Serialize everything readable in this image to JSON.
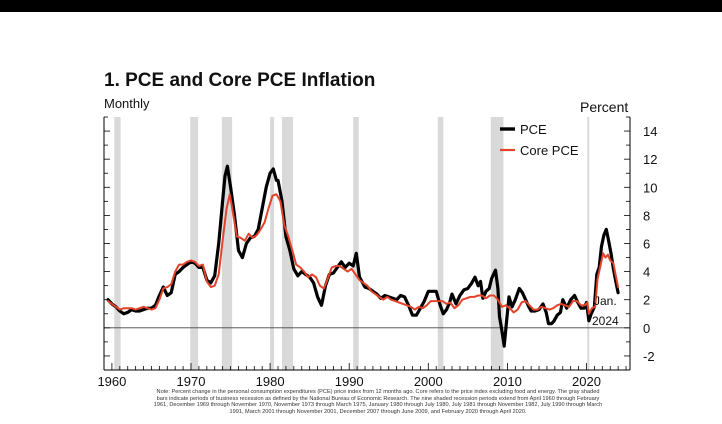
{
  "chart_data": {
    "type": "line",
    "title": "1. PCE and Core PCE Inflation",
    "subtitle": "Monthly",
    "ylabel": "Percent",
    "xlim": [
      1959,
      2025.5
    ],
    "ylim": [
      -3,
      15
    ],
    "x_ticks": [
      1960,
      1970,
      1980,
      1990,
      2000,
      2010,
      2020
    ],
    "x_tick_labels": [
      "1960",
      "1970",
      "1980",
      "1990",
      "2000",
      "2010",
      "2020"
    ],
    "y_ticks": [
      -2,
      0,
      2,
      4,
      6,
      8,
      10,
      12,
      14
    ],
    "y_tick_labels": [
      "-2",
      "0",
      "2",
      "4",
      "6",
      "8",
      "10",
      "12",
      "14"
    ],
    "legend_position": "top-right",
    "annotation": {
      "line1": "Jan.",
      "line2": "2024"
    },
    "recessions": [
      [
        1960.3,
        1961.1
      ],
      [
        1969.9,
        1970.9
      ],
      [
        1973.9,
        1975.2
      ],
      [
        1980.0,
        1980.5
      ],
      [
        1981.5,
        1982.9
      ],
      [
        1990.5,
        1991.2
      ],
      [
        2001.2,
        2001.9
      ],
      [
        2007.9,
        2009.5
      ],
      [
        2020.1,
        2020.3
      ]
    ],
    "series": [
      {
        "name": "PCE",
        "color": "#000000",
        "points": [
          [
            1959.5,
            2.0
          ],
          [
            1960,
            1.7
          ],
          [
            1960.5,
            1.5
          ],
          [
            1961,
            1.2
          ],
          [
            1961.5,
            1.0
          ],
          [
            1962,
            1.1
          ],
          [
            1962.5,
            1.3
          ],
          [
            1963,
            1.2
          ],
          [
            1963.5,
            1.2
          ],
          [
            1964,
            1.3
          ],
          [
            1964.5,
            1.4
          ],
          [
            1965,
            1.4
          ],
          [
            1965.5,
            1.6
          ],
          [
            1966,
            2.3
          ],
          [
            1966.5,
            2.9
          ],
          [
            1967,
            2.3
          ],
          [
            1967.5,
            2.5
          ],
          [
            1968,
            3.8
          ],
          [
            1968.5,
            4.0
          ],
          [
            1969,
            4.3
          ],
          [
            1969.5,
            4.5
          ],
          [
            1970,
            4.7
          ],
          [
            1970.5,
            4.6
          ],
          [
            1971,
            4.3
          ],
          [
            1971.5,
            4.3
          ],
          [
            1972,
            3.4
          ],
          [
            1972.5,
            3.2
          ],
          [
            1973,
            3.7
          ],
          [
            1973.5,
            6.0
          ],
          [
            1974,
            9.0
          ],
          [
            1974.3,
            10.8
          ],
          [
            1974.6,
            11.5
          ],
          [
            1975,
            10.0
          ],
          [
            1975.5,
            8.0
          ],
          [
            1976,
            5.5
          ],
          [
            1976.5,
            5.0
          ],
          [
            1977,
            6.0
          ],
          [
            1977.5,
            6.4
          ],
          [
            1978,
            6.5
          ],
          [
            1978.5,
            7.0
          ],
          [
            1979,
            8.5
          ],
          [
            1979.5,
            10.0
          ],
          [
            1980,
            11.0
          ],
          [
            1980.4,
            11.3
          ],
          [
            1980.8,
            10.5
          ],
          [
            1981,
            10.5
          ],
          [
            1981.5,
            9.0
          ],
          [
            1982,
            6.5
          ],
          [
            1982.5,
            5.5
          ],
          [
            1983,
            4.2
          ],
          [
            1983.5,
            3.7
          ],
          [
            1984,
            4.0
          ],
          [
            1984.5,
            3.8
          ],
          [
            1985,
            3.6
          ],
          [
            1985.5,
            3.2
          ],
          [
            1986,
            2.2
          ],
          [
            1986.5,
            1.6
          ],
          [
            1987,
            3.0
          ],
          [
            1987.5,
            3.8
          ],
          [
            1988,
            3.9
          ],
          [
            1988.5,
            4.3
          ],
          [
            1989,
            4.7
          ],
          [
            1989.5,
            4.3
          ],
          [
            1990,
            4.6
          ],
          [
            1990.5,
            4.4
          ],
          [
            1990.9,
            5.3
          ],
          [
            1991.3,
            3.6
          ],
          [
            1992,
            2.9
          ],
          [
            1992.5,
            2.8
          ],
          [
            1993,
            2.6
          ],
          [
            1993.5,
            2.4
          ],
          [
            1994,
            2.1
          ],
          [
            1994.5,
            2.3
          ],
          [
            1995,
            2.2
          ],
          [
            1995.5,
            2.1
          ],
          [
            1996,
            2.0
          ],
          [
            1996.5,
            2.3
          ],
          [
            1997,
            2.2
          ],
          [
            1997.5,
            1.6
          ],
          [
            1998,
            0.9
          ],
          [
            1998.5,
            0.9
          ],
          [
            1999,
            1.4
          ],
          [
            1999.5,
            1.9
          ],
          [
            2000,
            2.6
          ],
          [
            2000.5,
            2.6
          ],
          [
            2001,
            2.6
          ],
          [
            2001.5,
            1.6
          ],
          [
            2001.9,
            1.0
          ],
          [
            2002.3,
            1.3
          ],
          [
            2002.7,
            1.8
          ],
          [
            2003,
            2.4
          ],
          [
            2003.5,
            1.7
          ],
          [
            2004,
            2.3
          ],
          [
            2004.5,
            2.7
          ],
          [
            2005,
            2.8
          ],
          [
            2005.5,
            3.2
          ],
          [
            2005.9,
            3.6
          ],
          [
            2006.3,
            3.0
          ],
          [
            2006.6,
            3.3
          ],
          [
            2006.9,
            2.1
          ],
          [
            2007.3,
            2.6
          ],
          [
            2007.7,
            2.8
          ],
          [
            2008,
            3.5
          ],
          [
            2008.5,
            4.1
          ],
          [
            2008.8,
            2.8
          ],
          [
            2009,
            0.8
          ],
          [
            2009.3,
            -0.2
          ],
          [
            2009.6,
            -1.3
          ],
          [
            2009.9,
            0.5
          ],
          [
            2010.2,
            2.2
          ],
          [
            2010.6,
            1.5
          ],
          [
            2011,
            2.0
          ],
          [
            2011.5,
            2.8
          ],
          [
            2011.9,
            2.5
          ],
          [
            2012.3,
            2.0
          ],
          [
            2012.7,
            1.5
          ],
          [
            2013,
            1.2
          ],
          [
            2013.5,
            1.2
          ],
          [
            2014,
            1.3
          ],
          [
            2014.5,
            1.7
          ],
          [
            2014.9,
            1.1
          ],
          [
            2015.2,
            0.3
          ],
          [
            2015.6,
            0.3
          ],
          [
            2015.9,
            0.5
          ],
          [
            2016.3,
            0.9
          ],
          [
            2016.7,
            1.1
          ],
          [
            2017,
            2.0
          ],
          [
            2017.5,
            1.4
          ],
          [
            2018,
            2.0
          ],
          [
            2018.5,
            2.3
          ],
          [
            2018.9,
            1.8
          ],
          [
            2019.3,
            1.4
          ],
          [
            2019.7,
            1.4
          ],
          [
            2020,
            1.8
          ],
          [
            2020.3,
            0.5
          ],
          [
            2020.6,
            1.0
          ],
          [
            2021,
            1.5
          ],
          [
            2021.3,
            3.8
          ],
          [
            2021.6,
            4.3
          ],
          [
            2021.9,
            5.8
          ],
          [
            2022.2,
            6.6
          ],
          [
            2022.5,
            7.0
          ],
          [
            2022.8,
            6.2
          ],
          [
            2023.1,
            5.3
          ],
          [
            2023.4,
            4.2
          ],
          [
            2023.7,
            3.3
          ],
          [
            2024.0,
            2.5
          ]
        ]
      },
      {
        "name": "Core PCE",
        "color": "#e2432a",
        "points": [
          [
            1959.5,
            1.9
          ],
          [
            1960,
            1.7
          ],
          [
            1960.5,
            1.5
          ],
          [
            1961,
            1.3
          ],
          [
            1961.5,
            1.4
          ],
          [
            1962,
            1.4
          ],
          [
            1962.5,
            1.4
          ],
          [
            1963,
            1.3
          ],
          [
            1963.5,
            1.4
          ],
          [
            1964,
            1.5
          ],
          [
            1964.5,
            1.4
          ],
          [
            1965,
            1.3
          ],
          [
            1965.5,
            1.4
          ],
          [
            1966,
            2.0
          ],
          [
            1966.5,
            2.8
          ],
          [
            1967,
            2.9
          ],
          [
            1967.5,
            3.1
          ],
          [
            1968,
            4.0
          ],
          [
            1968.5,
            4.5
          ],
          [
            1969,
            4.5
          ],
          [
            1969.5,
            4.7
          ],
          [
            1970,
            4.8
          ],
          [
            1970.5,
            4.7
          ],
          [
            1971,
            4.4
          ],
          [
            1971.5,
            4.5
          ],
          [
            1972,
            3.3
          ],
          [
            1972.5,
            2.9
          ],
          [
            1973,
            3.0
          ],
          [
            1973.5,
            3.8
          ],
          [
            1974,
            6.2
          ],
          [
            1974.5,
            8.5
          ],
          [
            1974.9,
            9.5
          ],
          [
            1975.3,
            8.2
          ],
          [
            1975.8,
            6.5
          ],
          [
            1976.3,
            6.4
          ],
          [
            1976.8,
            6.2
          ],
          [
            1977.3,
            6.7
          ],
          [
            1977.8,
            6.4
          ],
          [
            1978.3,
            6.6
          ],
          [
            1978.8,
            7.0
          ],
          [
            1979.3,
            7.5
          ],
          [
            1979.8,
            8.5
          ],
          [
            1980.3,
            9.4
          ],
          [
            1980.8,
            9.5
          ],
          [
            1981.3,
            9.0
          ],
          [
            1981.8,
            7.3
          ],
          [
            1982.3,
            6.5
          ],
          [
            1982.8,
            5.5
          ],
          [
            1983.3,
            4.5
          ],
          [
            1983.8,
            4.3
          ],
          [
            1984.3,
            4.0
          ],
          [
            1984.8,
            3.6
          ],
          [
            1985.3,
            3.8
          ],
          [
            1985.8,
            3.6
          ],
          [
            1986.3,
            3.0
          ],
          [
            1986.8,
            2.8
          ],
          [
            1987.3,
            3.5
          ],
          [
            1987.8,
            4.3
          ],
          [
            1988.3,
            4.4
          ],
          [
            1988.8,
            4.4
          ],
          [
            1989.3,
            4.2
          ],
          [
            1989.8,
            4.0
          ],
          [
            1990.3,
            4.2
          ],
          [
            1990.8,
            3.8
          ],
          [
            1991.3,
            3.4
          ],
          [
            1991.8,
            3.2
          ],
          [
            1992.3,
            3.0
          ],
          [
            1992.8,
            2.6
          ],
          [
            1993.3,
            2.4
          ],
          [
            1993.8,
            2.2
          ],
          [
            1994.3,
            2.0
          ],
          [
            1994.8,
            2.2
          ],
          [
            1995.3,
            2.0
          ],
          [
            1995.8,
            1.9
          ],
          [
            1996.3,
            1.8
          ],
          [
            1996.8,
            1.7
          ],
          [
            1997.3,
            1.6
          ],
          [
            1997.8,
            1.5
          ],
          [
            1998.3,
            1.3
          ],
          [
            1998.8,
            1.5
          ],
          [
            1999.3,
            1.4
          ],
          [
            1999.8,
            1.6
          ],
          [
            2000.3,
            1.9
          ],
          [
            2000.8,
            1.9
          ],
          [
            2001.3,
            1.9
          ],
          [
            2001.8,
            1.9
          ],
          [
            2002.3,
            1.7
          ],
          [
            2002.8,
            1.8
          ],
          [
            2003.3,
            1.4
          ],
          [
            2003.8,
            1.6
          ],
          [
            2004.3,
            2.0
          ],
          [
            2004.8,
            2.1
          ],
          [
            2005.3,
            2.2
          ],
          [
            2005.8,
            2.2
          ],
          [
            2006.3,
            2.3
          ],
          [
            2006.8,
            2.3
          ],
          [
            2007.3,
            2.1
          ],
          [
            2007.8,
            2.3
          ],
          [
            2008.3,
            2.3
          ],
          [
            2008.8,
            2.0
          ],
          [
            2009.3,
            1.5
          ],
          [
            2009.8,
            1.6
          ],
          [
            2010.3,
            1.4
          ],
          [
            2010.8,
            1.1
          ],
          [
            2011.3,
            1.3
          ],
          [
            2011.8,
            1.8
          ],
          [
            2012.3,
            1.9
          ],
          [
            2012.8,
            1.6
          ],
          [
            2013.3,
            1.3
          ],
          [
            2013.8,
            1.3
          ],
          [
            2014.3,
            1.5
          ],
          [
            2014.8,
            1.4
          ],
          [
            2015.3,
            1.3
          ],
          [
            2015.8,
            1.4
          ],
          [
            2016.3,
            1.6
          ],
          [
            2016.8,
            1.7
          ],
          [
            2017.3,
            1.6
          ],
          [
            2017.8,
            1.5
          ],
          [
            2018.3,
            1.9
          ],
          [
            2018.8,
            1.9
          ],
          [
            2019.3,
            1.6
          ],
          [
            2019.8,
            1.6
          ],
          [
            2020.1,
            1.8
          ],
          [
            2020.3,
            1.0
          ],
          [
            2020.7,
            1.4
          ],
          [
            2021.1,
            1.5
          ],
          [
            2021.4,
            3.5
          ],
          [
            2021.8,
            4.5
          ],
          [
            2022.1,
            5.3
          ],
          [
            2022.4,
            5.0
          ],
          [
            2022.7,
            5.2
          ],
          [
            2023.0,
            4.8
          ],
          [
            2023.4,
            4.6
          ],
          [
            2023.7,
            3.7
          ],
          [
            2024.0,
            2.9
          ]
        ]
      }
    ]
  },
  "note": {
    "line1": "Note: Percent change in the personal consumption expenditures (PCE) price index from 12 months ago. Core refers to the price index excluding food and energy. The gray shaded",
    "line2": "bars indicate periods of business recession as defined by the National Bureau of Economic Research. The nine shaded recession periods extend from April 1960 through February",
    "line3": "1961, December 1969 through November 1970, November 1973 through March 1975, January 1980 through July 1980, July 1981 through November 1982, July 1990 through March",
    "line4": "1991, March 2001 through November 2001, December 2007 through June 2009, and February 2020 through April 2020."
  },
  "colors": {
    "recession": "#d9d9d9",
    "axis": "#000000"
  }
}
